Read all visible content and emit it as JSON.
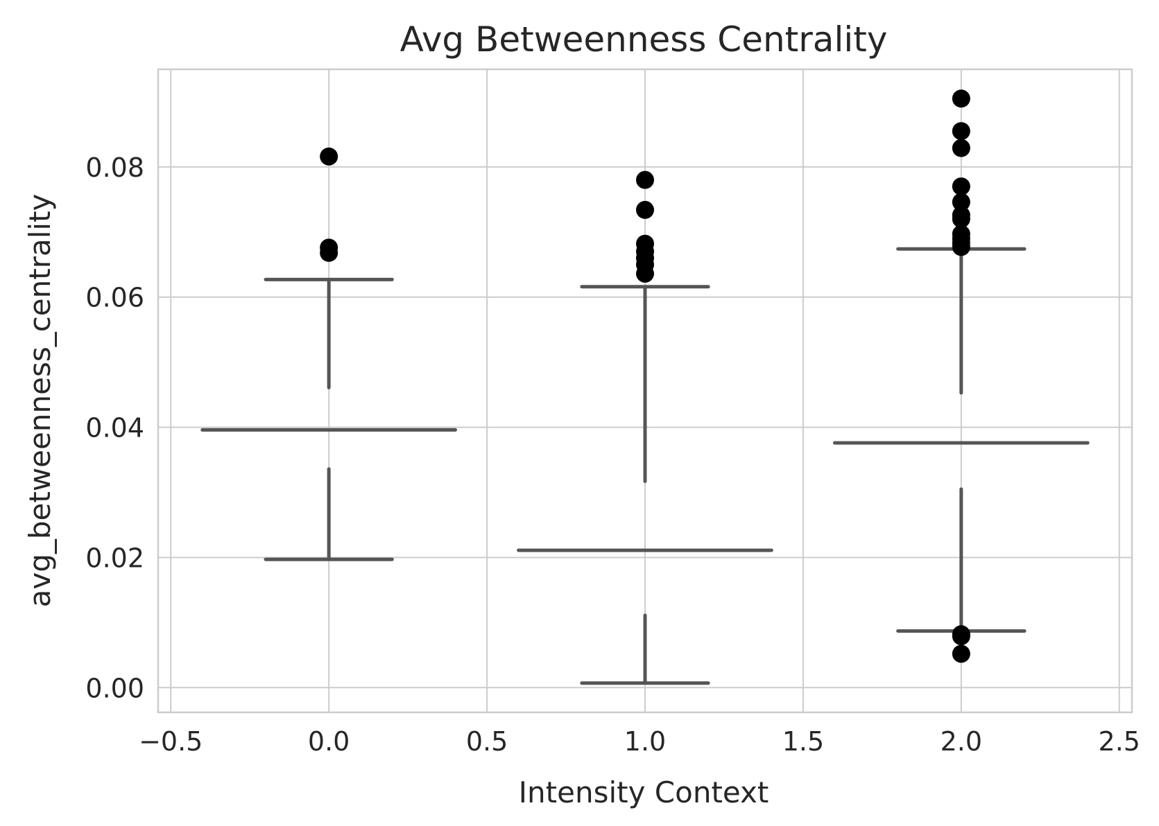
{
  "chart_data": {
    "type": "box",
    "title": "Avg Betweenness Centrality",
    "xlabel": "Intensity Context",
    "ylabel": "avg_betweenness_centrality",
    "xlim": [
      -0.54,
      2.54
    ],
    "ylim": [
      -0.0038,
      0.095
    ],
    "xticks": [
      -0.5,
      0.0,
      0.5,
      1.0,
      1.5,
      2.0,
      2.5
    ],
    "xtick_labels": [
      "−0.5",
      "0.0",
      "0.5",
      "1.0",
      "1.5",
      "2.0",
      "2.5"
    ],
    "yticks": [
      0.0,
      0.02,
      0.04,
      0.06,
      0.08
    ],
    "ytick_labels": [
      "0.00",
      "0.02",
      "0.04",
      "0.06",
      "0.08"
    ],
    "grid": true,
    "colors": {
      "box_line": "#555555",
      "outlier": "#000000",
      "grid": "#cccccc",
      "spine": "#cccccc",
      "text": "#262626"
    },
    "series": [
      {
        "x": 0.0,
        "whisker_low": 0.0197,
        "q1_top": 0.0336,
        "median": 0.0396,
        "q3_bottom": 0.0461,
        "whisker_high": 0.0627,
        "cap_halfwidth": 0.2,
        "median_halfwidth": 0.4,
        "outliers": [
          0.0816,
          0.0676,
          0.0668
        ]
      },
      {
        "x": 1.0,
        "whisker_low": 0.0007,
        "q1_top": 0.0111,
        "median": 0.0211,
        "q3_bottom": 0.0317,
        "whisker_high": 0.0616,
        "cap_halfwidth": 0.2,
        "median_halfwidth": 0.4,
        "outliers": [
          0.078,
          0.0734,
          0.0682,
          0.067,
          0.066,
          0.065,
          0.0636
        ]
      },
      {
        "x": 2.0,
        "whisker_low": 0.0087,
        "q1_top": 0.0305,
        "median": 0.0376,
        "q3_bottom": 0.0453,
        "whisker_high": 0.0674,
        "cap_halfwidth": 0.2,
        "median_halfwidth": 0.4,
        "outliers": [
          0.0905,
          0.0855,
          0.0829,
          0.077,
          0.0746,
          0.0726,
          0.072,
          0.0697,
          0.069,
          0.0683,
          0.0677,
          0.0082,
          0.0079,
          0.0052
        ]
      }
    ]
  }
}
